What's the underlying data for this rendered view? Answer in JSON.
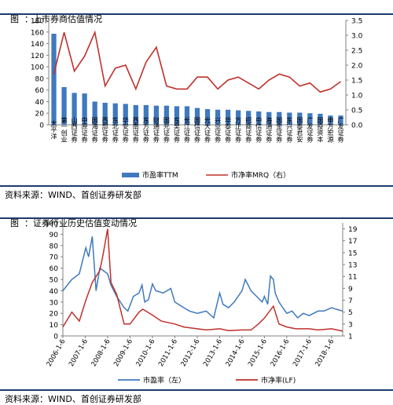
{
  "figure1": {
    "prefix": "图",
    "sep": "：",
    "title": "上市券商估值情况",
    "source": "资料来源：WIND、首创证券研发部"
  },
  "figure2": {
    "prefix": "图",
    "sep": "：",
    "title": "证券行业历史估值变动情况",
    "source": "资料来源：WIND、首创证券研发部"
  },
  "colors": {
    "bar": "#3f79be",
    "line": "#c0302b",
    "rule": "#1e3a6e",
    "axis": "#808080"
  },
  "chart_data": [
    {
      "type": "bar",
      "title": "",
      "categories": [
        "太平洋",
        "第一创业",
        "山西证券",
        "中原证券",
        "国海证券",
        "西部证券",
        "东北证券",
        "华安证券",
        "西南证券",
        "东方证券",
        "财通证券",
        "国元证券",
        "东吴证券",
        "长江证券",
        "国信证券",
        "光大证券",
        "兴业证券",
        "华泰证券",
        "方正证券",
        "招商证券",
        "中信证券",
        "海通证券",
        "国金证券",
        "东兴证券",
        "国泰君安",
        "广发证券",
        "国投资本",
        "申万宏源",
        "广发证券"
      ],
      "series": [
        {
          "name": "市盈率TTM",
          "type": "bar",
          "axis": "left",
          "values": [
            157,
            65,
            55,
            54,
            40,
            38,
            37,
            36,
            34,
            34,
            33,
            33,
            32,
            32,
            29,
            27,
            26,
            26,
            25,
            24,
            23,
            22,
            22,
            21,
            21,
            20,
            19,
            16,
            16
          ]
        },
        {
          "name": "市净率MRQ（右）",
          "type": "line",
          "axis": "right",
          "values": [
            1.7,
            3.1,
            1.8,
            2.3,
            3.1,
            1.3,
            1.9,
            2.0,
            1.2,
            2.1,
            2.6,
            1.3,
            1.2,
            1.2,
            1.6,
            1.6,
            1.2,
            1.5,
            1.6,
            1.4,
            1.2,
            1.5,
            1.7,
            1.6,
            1.3,
            1.4,
            1.1,
            1.2,
            1.45
          ]
        }
      ],
      "ylim_left": [
        0,
        180
      ],
      "yticks_left": [
        0,
        20,
        40,
        60,
        80,
        100,
        120,
        140,
        160,
        180
      ],
      "ylim_right": [
        0,
        3.5
      ],
      "yticks_right": [
        "0.0",
        "0.5",
        "1.0",
        "1.5",
        "2.0",
        "2.5",
        "3.0",
        "3.5"
      ],
      "legend_placement": "bottom",
      "grid": false
    },
    {
      "type": "line",
      "title": "",
      "x_tick_labels": [
        "2006-1-6",
        "2007-1-6",
        "2008-1-6",
        "2009-1-6",
        "2010-1-6",
        "2011-1-6",
        "2012-1-6",
        "2013-1-6",
        "2014-1-6",
        "2015-1-6",
        "2016-1-6",
        "2017-1-6",
        "2018-1-6"
      ],
      "x_range": [
        "2006-1-6",
        "2018-7-6"
      ],
      "series": [
        {
          "name": "市盈率（左）",
          "axis": "left",
          "x": [
            "2006-1-6",
            "2006-6-1",
            "2006-10-1",
            "2007-1-15",
            "2007-3-1",
            "2007-5-1",
            "2007-7-1",
            "2007-9-1",
            "2007-10-20",
            "2008-1-6",
            "2008-3-1",
            "2008-6-1",
            "2008-10-1",
            "2008-12-1",
            "2009-3-1",
            "2009-6-1",
            "2009-7-20",
            "2009-9-1",
            "2009-11-1",
            "2010-1-6",
            "2010-3-1",
            "2010-7-1",
            "2010-11-1",
            "2011-1-6",
            "2011-6-1",
            "2011-9-1",
            "2012-1-6",
            "2012-6-1",
            "2012-10-1",
            "2013-1-6",
            "2013-3-1",
            "2013-6-1",
            "2013-9-1",
            "2014-1-6",
            "2014-3-1",
            "2014-6-1",
            "2014-9-1",
            "2014-12-1",
            "2015-1-6",
            "2015-3-1",
            "2015-4-15",
            "2015-6-1",
            "2015-7-1",
            "2015-9-1",
            "2015-11-1",
            "2016-1-6",
            "2016-4-1",
            "2016-7-1",
            "2016-10-1",
            "2017-1-6",
            "2017-6-1",
            "2017-9-1",
            "2018-1-6",
            "2018-3-1",
            "2018-5-1",
            "2018-7-6"
          ],
          "values": [
            40,
            50,
            55,
            78,
            70,
            88,
            40,
            60,
            58,
            55,
            45,
            35,
            25,
            22,
            35,
            38,
            45,
            30,
            32,
            46,
            40,
            38,
            42,
            30,
            25,
            22,
            20,
            22,
            16,
            38,
            28,
            25,
            30,
            40,
            50,
            40,
            35,
            30,
            35,
            28,
            53,
            50,
            38,
            30,
            25,
            20,
            22,
            16,
            20,
            18,
            22,
            22,
            25,
            24,
            23,
            22
          ]
        },
        {
          "name": "市净率(LF)",
          "axis": "right",
          "x": [
            "2006-1-6",
            "2006-6-1",
            "2006-10-1",
            "2007-1-15",
            "2007-5-1",
            "2007-9-1",
            "2007-10-20",
            "2008-1-6",
            "2008-3-1",
            "2008-6-1",
            "2008-10-1",
            "2009-1-6",
            "2009-6-1",
            "2009-8-1",
            "2010-1-6",
            "2010-6-1",
            "2011-1-6",
            "2011-6-1",
            "2012-1-6",
            "2012-6-1",
            "2013-1-6",
            "2013-6-1",
            "2014-1-6",
            "2014-6-1",
            "2014-10-1",
            "2015-1-6",
            "2015-6-1",
            "2015-9-1",
            "2016-1-6",
            "2016-6-1",
            "2017-1-6",
            "2017-6-1",
            "2018-1-6",
            "2018-7-6"
          ],
          "values": [
            2.5,
            5.0,
            3.5,
            7.0,
            10.0,
            12.0,
            14.5,
            19.0,
            10.0,
            8.0,
            3.0,
            3.0,
            5.0,
            5.5,
            4.5,
            3.5,
            3.0,
            2.5,
            2.2,
            2.0,
            2.2,
            1.9,
            2.0,
            2.0,
            3.0,
            4.0,
            6.0,
            3.0,
            2.5,
            2.2,
            2.2,
            2.0,
            2.2,
            1.8
          ]
        }
      ],
      "ylim_left": [
        0,
        100
      ],
      "yticks_left": [
        0,
        10,
        20,
        30,
        40,
        50,
        60,
        70,
        80,
        90,
        100
      ],
      "ylim_right": [
        1,
        20
      ],
      "yticks_right": [
        1,
        3,
        5,
        7,
        9,
        11,
        13,
        15,
        17,
        19
      ],
      "legend_placement": "bottom",
      "grid": false
    }
  ]
}
